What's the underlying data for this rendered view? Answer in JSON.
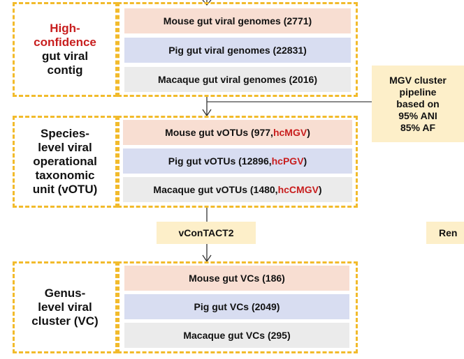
{
  "colors": {
    "dash": "#f2bb2c",
    "mouse": "#f8ded2",
    "pig": "#d8ddf1",
    "macaque": "#ebebeb",
    "note": "#fdefc9",
    "highlight": "#c81e1e"
  },
  "contig": {
    "label_red_1": "High-",
    "label_red_2": "confidence",
    "label_line_3": "gut viral",
    "label_line_4": "contig",
    "mouse": "Mouse gut viral genomes (2771)",
    "pig": "Pig gut viral genomes (22831)",
    "macaque": "Macaque gut viral genomes (2016)"
  },
  "cluster_note": {
    "line1": "MGV cluster",
    "line2": "pipeline",
    "line3": "based on",
    "line4": "95% ANI",
    "line5": "85% AF"
  },
  "votu": {
    "label_1": "Species-",
    "label_2": "level viral",
    "label_3": "operational",
    "label_4": "taxonomic",
    "label_5": "unit (vOTU)",
    "mouse_prefix": "Mouse gut vOTUs (977, ",
    "mouse_name": "hcMGV",
    "pig_prefix": "Pig gut vOTUs (12896, ",
    "pig_name": "hcPGV",
    "macaque_prefix": "Macaque gut vOTUs (1480, ",
    "macaque_name": "hcCMGV",
    "close_paren": ")"
  },
  "vcontact": {
    "label": "vConTACT2"
  },
  "right_note": {
    "label": "Ren"
  },
  "vc": {
    "label_1": "Genus-",
    "label_2": "level viral",
    "label_3": "cluster (VC)",
    "mouse": "Mouse gut VCs (186)",
    "pig": "Pig gut VCs (2049)",
    "macaque": "Macaque gut VCs (295)"
  }
}
